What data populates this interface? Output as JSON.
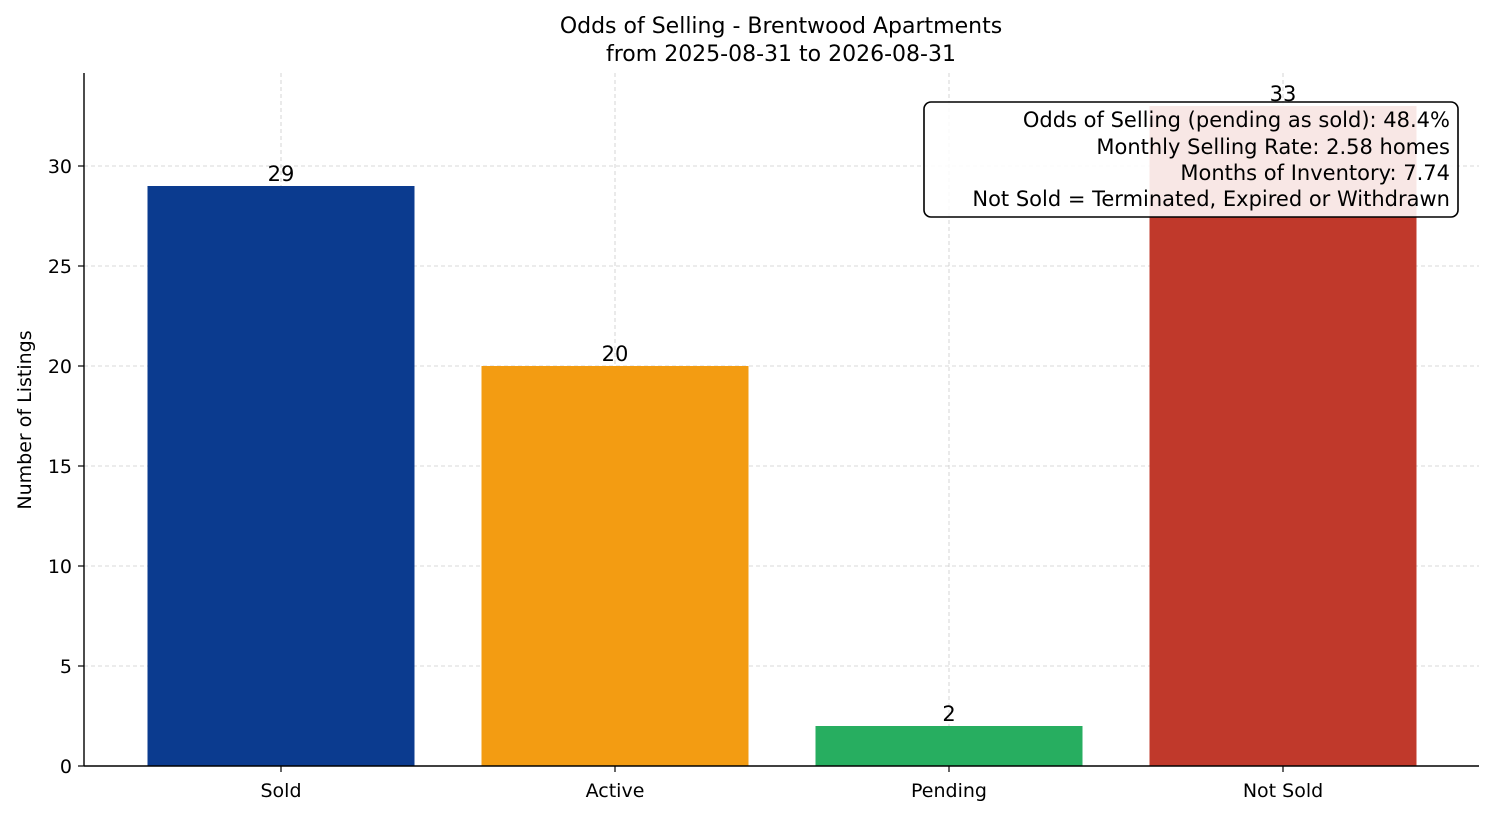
{
  "chart_data": {
    "type": "bar",
    "title": "Odds of Selling - Brentwood Apartments",
    "subtitle": "from 2025-08-31 to 2026-08-31",
    "xlabel": "",
    "ylabel": "Number of Listings",
    "categories": [
      "Sold",
      "Active",
      "Pending",
      "Not Sold"
    ],
    "values": [
      29,
      20,
      2,
      33
    ],
    "colors": [
      "#0b3b8f",
      "#f39c12",
      "#27ae60",
      "#c0392b"
    ],
    "ylim": [
      0,
      34.65
    ],
    "yticks": [
      0,
      5,
      10,
      15,
      20,
      25,
      30
    ],
    "grid": true,
    "annotation": {
      "placement": "top-right",
      "lines": [
        "Odds of Selling (pending as sold): 48.4%",
        "Monthly Selling Rate: 2.58 homes",
        "Months of Inventory: 7.74",
        "Not Sold = Terminated, Expired or Withdrawn"
      ]
    }
  }
}
